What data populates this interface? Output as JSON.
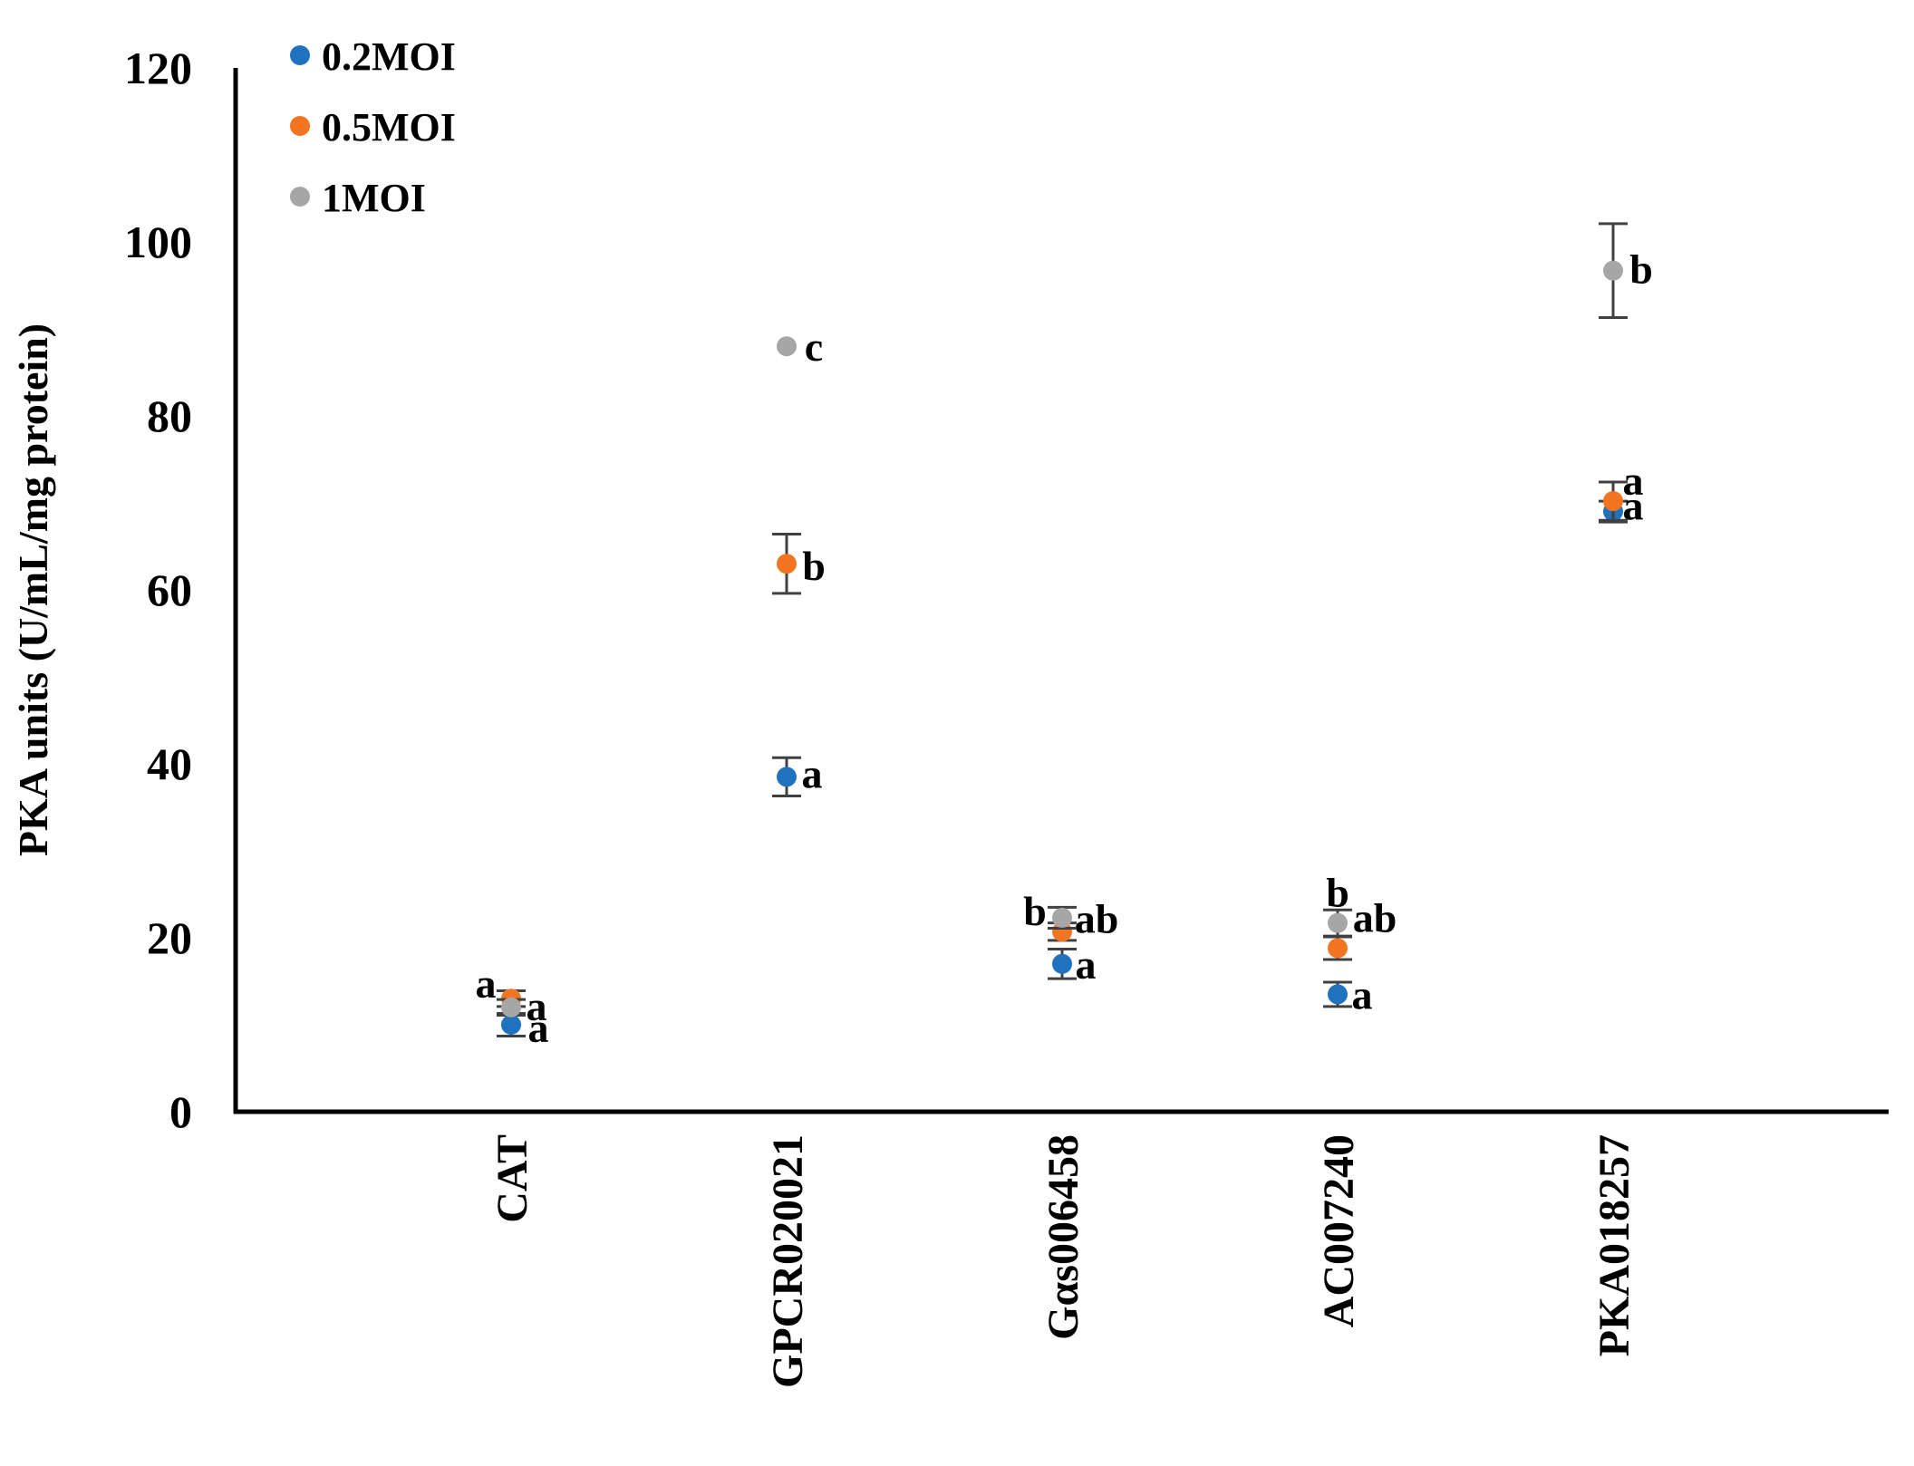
{
  "figure": {
    "background": "#ffffff"
  },
  "chart_data": {
    "type": "scatter",
    "title": "",
    "xlabel": "",
    "ylabel": "PKA units (U/mL/mg protein)",
    "ylim": [
      0,
      120
    ],
    "yticks": [
      0,
      20,
      40,
      60,
      80,
      100,
      120
    ],
    "grid": false,
    "legend_position": "top-left",
    "axis_color": "#000000",
    "error_bar_color": "#404040",
    "annotation_color": "#000000",
    "categories": [
      "CAT",
      "GPCR020021",
      "Gαs006458",
      "AC007240",
      "PKA018257"
    ],
    "series": [
      {
        "name": "0.2MOI",
        "color": "#1F72BE",
        "values": [
          10,
          38.5,
          17,
          13.5,
          69
        ],
        "errors": [
          1.3,
          2.2,
          1.7,
          1.4,
          1.2
        ],
        "letters": [
          "a",
          "a",
          "a",
          "a",
          "a"
        ],
        "letter_offsets": [
          [
            30,
            3
          ],
          [
            28,
            -4
          ],
          [
            26,
            0
          ],
          [
            27,
            0
          ],
          [
            22,
            -7
          ]
        ]
      },
      {
        "name": "0.5MOI",
        "color": "#F37421",
        "values": [
          13,
          63,
          20.7,
          18.8,
          70.2
        ],
        "errors": [
          0.9,
          3.4,
          1.0,
          1.3,
          2.2
        ],
        "letters": [
          "a",
          "b",
          "ab",
          "ab",
          "a"
        ],
        "letter_offsets": [
          [
            -28,
            -17
          ],
          [
            30,
            2
          ],
          [
            38,
            -15
          ],
          [
            41,
            -34
          ],
          [
            22,
            -23
          ]
        ]
      },
      {
        "name": "1MOI",
        "color": "#A6A6A6",
        "values": [
          12,
          88,
          22.3,
          21.7,
          96.7
        ],
        "errors": [
          0.9,
          0,
          1.2,
          1.5,
          5.4
        ],
        "letters": [
          "a",
          "c",
          "b",
          "b",
          "b"
        ],
        "letter_offsets": [
          [
            28,
            -2
          ],
          [
            30,
            0
          ],
          [
            -30,
            -8
          ],
          [
            0,
            -34
          ],
          [
            31,
            -2
          ]
        ]
      }
    ]
  }
}
